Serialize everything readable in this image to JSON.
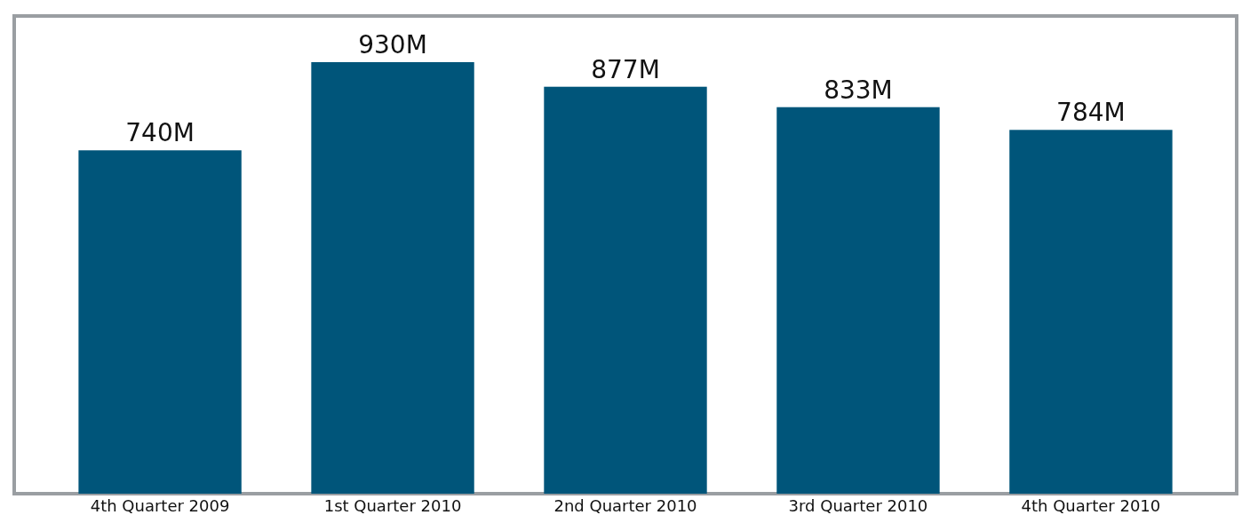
{
  "chart_data": {
    "type": "bar",
    "categories": [
      "4th Quarter 2009",
      "1st Quarter 2010",
      "2nd Quarter 2010",
      "3rd Quarter 2010",
      "4th Quarter 2010"
    ],
    "values": [
      740,
      930,
      877,
      833,
      784
    ],
    "value_labels": [
      "740M",
      "930M",
      "877M",
      "833M",
      "784M"
    ],
    "color": "#00557a"
  }
}
